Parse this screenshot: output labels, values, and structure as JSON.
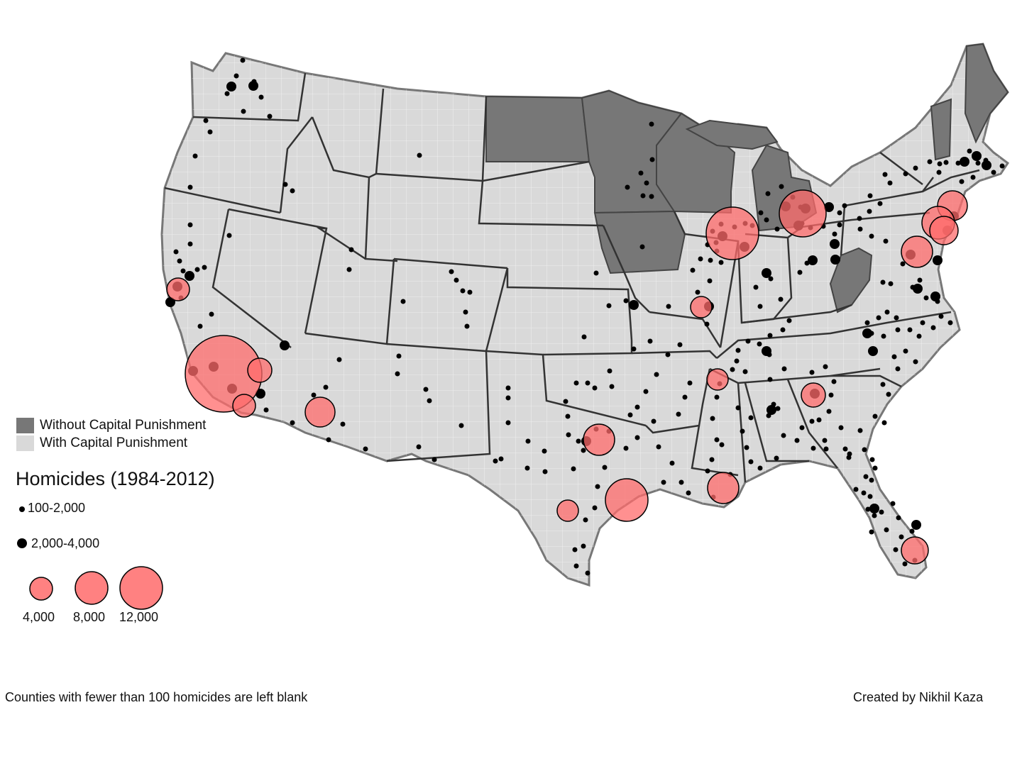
{
  "legend": {
    "without_label": "Without Capital Punishment",
    "with_label": "With Capital Punishment",
    "without_color": "#777777",
    "with_color": "#d9d9d9",
    "title": "Homicides (1984-2012)",
    "small_label": "100-2,000",
    "medium_label": "2,000-4,000",
    "large_labels": [
      "4,000",
      "8,000",
      "12,000"
    ],
    "circle_fill": "#ff6b6b",
    "dot_color": "#000000"
  },
  "footer": {
    "note": "Counties with fewer than 100 homicides are left blank",
    "credit": "Created by Nikhil Kaza"
  }
}
